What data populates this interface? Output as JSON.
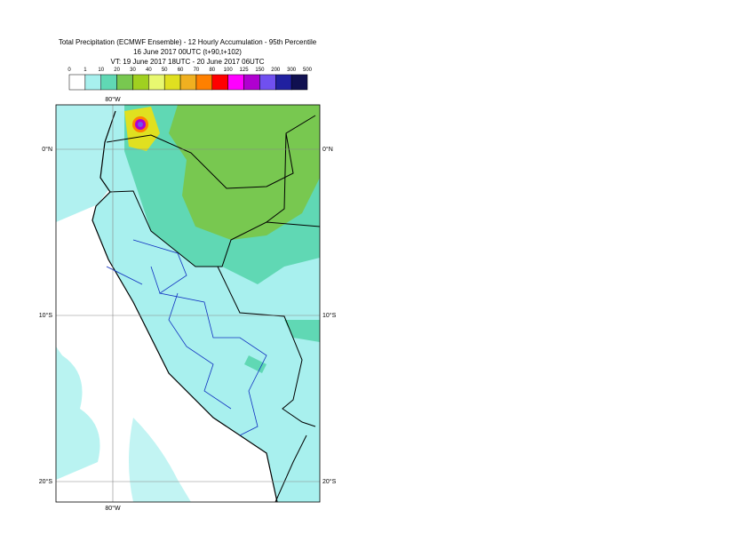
{
  "header": {
    "title": "Total Precipitation (ECMWF Ensemble) - 12 Hourly Accumulation - 95th Percentile",
    "run": "16 June 2017 00UTC (t+90,t+102)",
    "valid": "VT: 19 June 2017 18UTC - 20 June 2017 06UTC"
  },
  "colorbar": {
    "levels": [
      0,
      1,
      10,
      20,
      30,
      40,
      50,
      60,
      70,
      80,
      100,
      125,
      150,
      200,
      300,
      500
    ],
    "colors": [
      "#ffffff",
      "#a8f0ee",
      "#60d8b4",
      "#78c850",
      "#a0d020",
      "#e8f870",
      "#e0e020",
      "#f0b020",
      "#ff8000",
      "#ff0000",
      "#ff00ff",
      "#b000d0",
      "#7050f0",
      "#2020a0",
      "#101050"
    ]
  },
  "map": {
    "longitude_top": "80°W",
    "longitude_bottom": "80°W",
    "latitude_left": [
      "0°N",
      "10°S",
      "20°S"
    ],
    "latitude_right": [
      "0°N",
      "10°S",
      "20°S"
    ]
  }
}
